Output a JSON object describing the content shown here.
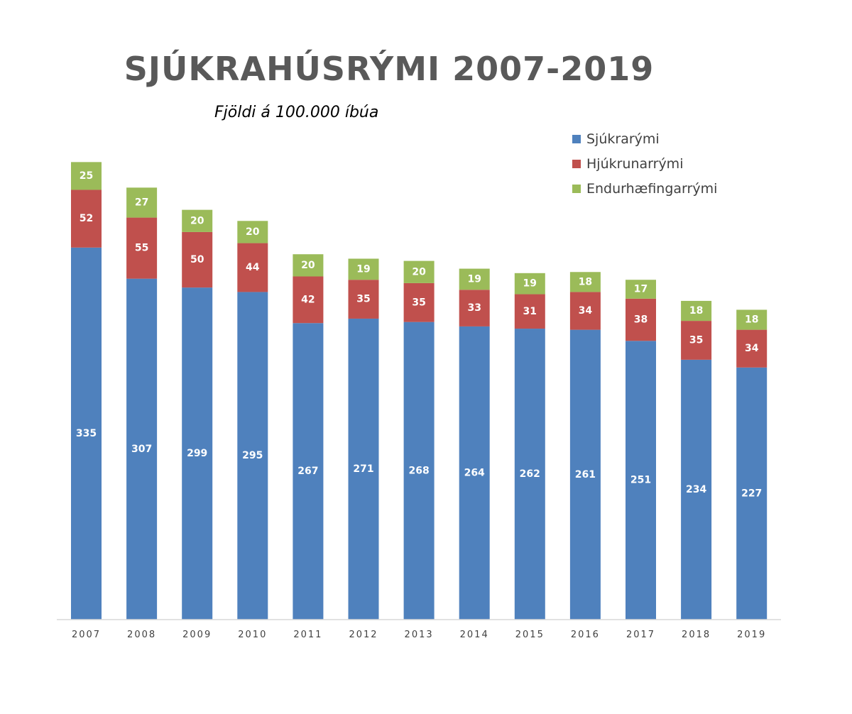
{
  "chart_data": {
    "type": "bar",
    "stacked": true,
    "title": "SJÚKRAHÚSRÝMI 2007-2019",
    "subtitle": "Fjöldi á 100.000 íbúa",
    "categories": [
      "2007",
      "2008",
      "2009",
      "2010",
      "2011",
      "2012",
      "2013",
      "2014",
      "2015",
      "2016",
      "2017",
      "2018",
      "2019"
    ],
    "series": [
      {
        "name": "Sjúkrarými",
        "color": "#4f81bd",
        "values": [
          335,
          307,
          299,
          295,
          267,
          271,
          268,
          264,
          262,
          261,
          251,
          234,
          227
        ]
      },
      {
        "name": "Hjúkrunarrými",
        "color": "#c0504d",
        "values": [
          52,
          55,
          50,
          44,
          42,
          35,
          35,
          33,
          31,
          34,
          38,
          35,
          34
        ]
      },
      {
        "name": "Endurhæfingarrými",
        "color": "#9bbb59",
        "values": [
          25,
          27,
          20,
          20,
          20,
          19,
          20,
          19,
          19,
          18,
          17,
          18,
          18
        ]
      }
    ],
    "xlabel": "",
    "ylabel": "",
    "ylim": [
      0,
      412
    ],
    "y_axis_visible": false,
    "grid": false,
    "data_labels": true,
    "legend_position": "top-right"
  },
  "legend": {
    "items": [
      {
        "label": "Sjúkrarými",
        "color": "#4f81bd"
      },
      {
        "label": "Hjúkrunarrými",
        "color": "#c0504d"
      },
      {
        "label": "Endurhæfingarrými",
        "color": "#9bbb59"
      }
    ]
  }
}
